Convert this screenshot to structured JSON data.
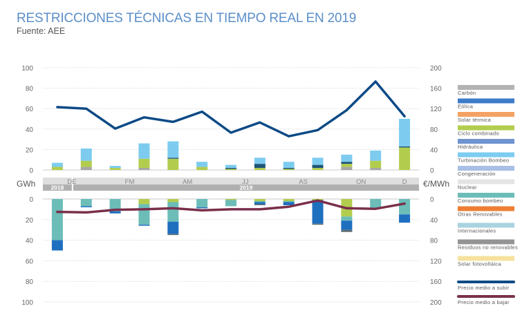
{
  "chart_data": {
    "type": "bar",
    "title": "RESTRICCIONES TÉCNICAS EN TIEMPO REAL EN 2019",
    "subtitle": "Fuente: AEE",
    "categories": [
      "D-2018",
      "E",
      "F",
      "M",
      "A",
      "M",
      "J",
      "J",
      "A",
      "S",
      "O",
      "N",
      "D"
    ],
    "month_labels": [
      {
        "label": "DE",
        "from": 0,
        "to": 1
      },
      {
        "label": "FM",
        "from": 2,
        "to": 3
      },
      {
        "label": "AM",
        "from": 4,
        "to": 5
      },
      {
        "label": "JJ",
        "from": 6,
        "to": 7
      },
      {
        "label": "AS",
        "from": 8,
        "to": 9
      },
      {
        "label": "ON",
        "from": 10,
        "to": 11
      },
      {
        "label": "D",
        "from": 12,
        "to": 12
      }
    ],
    "year_labels": [
      {
        "label": "2018",
        "from": 0,
        "to": 0
      },
      {
        "label": "2019",
        "from": 1,
        "to": 12
      }
    ],
    "left_axis_label": "GWh",
    "right_axis_label": "€/MWh",
    "upper": {
      "ylim": [
        0,
        100
      ],
      "ticks": [
        0,
        20,
        40,
        60,
        80,
        100
      ],
      "right_ylim": [
        0,
        200
      ],
      "right_ticks": [
        0,
        40,
        80,
        120,
        160,
        200
      ]
    },
    "lower": {
      "ylim": [
        0,
        100
      ],
      "ticks": [
        0,
        20,
        40,
        60,
        80,
        100
      ],
      "right_ylim": [
        0,
        200
      ],
      "right_ticks": [
        0,
        40,
        80,
        120,
        160,
        200
      ]
    },
    "series_upper": [
      {
        "name": "Carbón",
        "values": [
          0,
          3,
          0,
          2,
          0,
          0,
          0,
          0,
          0,
          0,
          3,
          2,
          0
        ]
      },
      {
        "name": "Ciclo combinado",
        "values": [
          3,
          6,
          2,
          9,
          11,
          3,
          1,
          2,
          1,
          2,
          3,
          7,
          22
        ]
      },
      {
        "name": "Hidráulica",
        "values": [
          0,
          0,
          0,
          0,
          1,
          0,
          1,
          4,
          1,
          3,
          2,
          0,
          1
        ]
      },
      {
        "name": "Turbinación Bombeo",
        "values": [
          4,
          12,
          2,
          15,
          16,
          5,
          3,
          6,
          6,
          7,
          7,
          10,
          27
        ]
      }
    ],
    "series_lower": [
      {
        "name": "Ciclo combinado",
        "values": [
          0,
          0,
          0,
          5,
          3,
          0,
          1,
          2,
          2,
          1,
          17,
          0,
          0
        ]
      },
      {
        "name": "Consumo bombeo",
        "values": [
          40,
          7,
          12,
          20,
          19,
          8,
          6,
          1,
          1,
          0,
          4,
          9,
          15
        ]
      },
      {
        "name": "Eólica",
        "values": [
          10,
          1,
          2,
          1,
          12,
          1,
          0,
          2,
          3,
          23,
          9,
          0,
          8
        ]
      },
      {
        "name": "Residuos no renovables",
        "values": [
          0,
          0,
          0,
          0,
          1,
          0,
          0,
          1,
          0,
          1,
          2,
          0,
          0
        ]
      }
    ],
    "lines": [
      {
        "name": "Precio medio a subir",
        "panel": "upper",
        "axis": "right",
        "values": [
          123,
          120,
          81,
          103,
          94,
          114,
          73,
          93,
          66,
          78,
          117,
          173,
          105
        ]
      },
      {
        "name": "Precio medio a bajar",
        "panel": "lower",
        "axis": "right",
        "values": [
          25,
          26,
          21,
          20,
          18,
          22,
          20,
          20,
          15,
          3,
          18,
          19,
          9
        ]
      }
    ],
    "legend": {
      "placement": "right",
      "items": [
        {
          "label": "Carbón",
          "color": "#b3b3b3",
          "type": "bar"
        },
        {
          "label": "Eólica",
          "color": "#3e7cc8",
          "type": "bar"
        },
        {
          "label": "Solar térmica",
          "color": "#f4a262",
          "type": "bar"
        },
        {
          "label": "Ciclo combinado",
          "color": "#b2cd4e",
          "type": "bar"
        },
        {
          "label": "Hidráulica",
          "color": "#6f93cf",
          "type": "bar"
        },
        {
          "label": "Turbinación Bombeo",
          "color": "#7dccf0",
          "type": "bar"
        },
        {
          "label": "Congeneración",
          "color": "#a8bfe6",
          "type": "bar"
        },
        {
          "label": "Nuclear",
          "color": "#e4e4e4",
          "type": "bar"
        },
        {
          "label": "Consumo bombeo",
          "color": "#6cbdb8",
          "type": "bar"
        },
        {
          "label": "Otras Renovables",
          "color": "#ed7f34",
          "type": "bar"
        },
        {
          "label": "Internacionales",
          "color": "#a9d3e0",
          "type": "bar"
        },
        {
          "label": "Residuos no renovables",
          "color": "#949494",
          "type": "bar"
        },
        {
          "label": "Solar fotovoltáica",
          "color": "#f5e29e",
          "type": "bar"
        },
        {
          "label": "Precio medio a subir",
          "color": "#0d4a86",
          "type": "line"
        },
        {
          "label": "Precio medio a bajar",
          "color": "#7a2f4b",
          "type": "line"
        }
      ]
    },
    "colors": {
      "Carbón": "#a6a6a6",
      "Ciclo combinado": "#b2cd4e",
      "Hidráulica": "#1e5578",
      "Turbinación Bombeo": "#7dccf0",
      "Consumo bombeo": "#6cbdb8",
      "Eólica": "#1f6fbf",
      "Residuos no renovables": "#5a6a70",
      "grid": "#e6e6e6",
      "month_band": "#dedede",
      "year_band": "#b0b0b0"
    },
    "grid": true
  }
}
